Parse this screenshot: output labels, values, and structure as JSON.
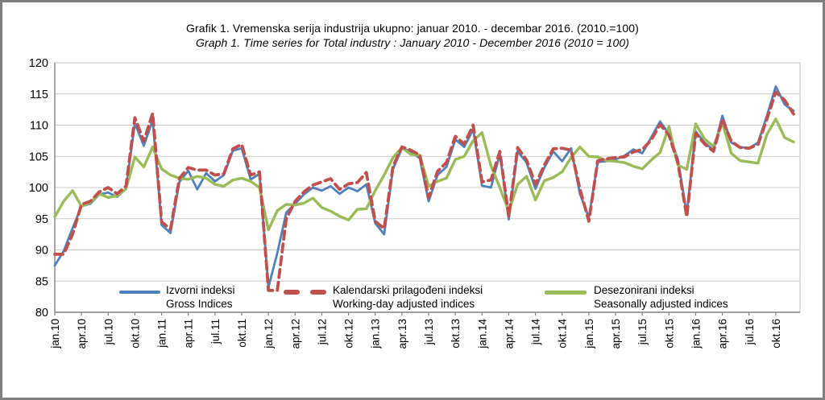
{
  "window": {
    "background": "#ffffff",
    "border_color": "#7f7f7f"
  },
  "title": {
    "line1": "Grafik 1. Vremenska serija industrija ukupno: januar 2010. - decembar 2016. (2010.=100)",
    "line2": "Graph 1. Time series for Total industry : January 2010 - December 2016 (2010 = 100)"
  },
  "legend": [
    {
      "label_hr": "Izvorni indeksi",
      "label_en": "Gross Indices",
      "style": "solid"
    },
    {
      "label_hr": "Kalendarski prilagođeni indeksi",
      "label_en": "Working-day adjusted indices",
      "style": "dashed"
    },
    {
      "label_hr": "Desezonirani indeksi",
      "label_en": "Seasonally adjusted indices",
      "style": "solid"
    }
  ],
  "chart_data": {
    "type": "line",
    "title": "Grafik 1. Vremenska serija industrija ukupno: januar 2010. - decembar 2016. (2010.=100)",
    "title_en": "Graph 1. Time series for Total industry : January 2010 - December 2016 (2010 = 100)",
    "x_unit": "month",
    "x_range": "jan.10 - dec.16 (84 monthly points)",
    "x_tick_labels": [
      "jan.10",
      "apr.10",
      "jul.10",
      "okt.10",
      "jan.11",
      "apr.11",
      "jul.11",
      "okt.11",
      "jan.12",
      "apr.12",
      "jul.12",
      "okt.12",
      "jan.13",
      "apr.13",
      "jul.13",
      "okt.13",
      "jan.14",
      "apr.14",
      "jul.14",
      "okt.14",
      "jan.15",
      "apr.15",
      "jul.15",
      "okt.15",
      "jan.16",
      "apr.16",
      "jul.16",
      "okt.16"
    ],
    "ylim": [
      80,
      120
    ],
    "y_ticks": [
      80,
      85,
      90,
      95,
      100,
      105,
      110,
      115,
      120
    ],
    "grid": "horizontal",
    "legend_position": "bottom-inside",
    "series": [
      {
        "name": "Izvorni indeksi (Gross Indices)",
        "color": "#4F81BD",
        "style": "solid",
        "width": 2.8,
        "values": [
          87.5,
          89.8,
          93.5,
          97.0,
          97.4,
          98.9,
          99.2,
          98.5,
          99.8,
          110.3,
          106.7,
          110.8,
          94.0,
          92.7,
          100.9,
          102.7,
          99.7,
          102.3,
          101.0,
          102.0,
          105.9,
          106.3,
          101.3,
          102.2,
          84.0,
          89.5,
          96.0,
          97.4,
          98.9,
          100.0,
          99.5,
          100.2,
          99.0,
          100.0,
          99.4,
          100.5,
          94.3,
          92.5,
          103.0,
          106.3,
          105.8,
          104.7,
          97.8,
          102.0,
          103.3,
          107.7,
          106.5,
          109.3,
          100.3,
          100.0,
          105.4,
          94.9,
          105.8,
          104.0,
          99.8,
          103.2,
          105.8,
          104.2,
          106.3,
          99.0,
          95.2,
          104.1,
          104.2,
          104.5,
          105.1,
          106.1,
          105.5,
          108.0,
          110.6,
          108.6,
          104.5,
          95.8,
          109.0,
          107.2,
          106.0,
          111.5,
          107.2,
          106.5,
          106.3,
          107.2,
          111.5,
          116.2,
          113.3,
          112.3
        ]
      },
      {
        "name": "Kalendarski prilagođeni indeksi (Working-day adjusted indices)",
        "color": "#C0504D",
        "style": "dashed",
        "width": 3.8,
        "values": [
          89.3,
          89.3,
          92.5,
          97.3,
          97.8,
          99.3,
          100.0,
          99.0,
          100.2,
          111.2,
          107.4,
          111.9,
          94.5,
          93.3,
          101.5,
          103.2,
          102.8,
          102.8,
          102.0,
          102.2,
          106.2,
          106.9,
          102.0,
          102.5,
          83.5,
          83.5,
          95.0,
          97.8,
          99.3,
          100.4,
          100.9,
          101.4,
          99.7,
          100.6,
          100.8,
          102.4,
          94.6,
          93.4,
          103.4,
          106.5,
          106.0,
          105.2,
          98.4,
          102.6,
          104.0,
          108.2,
          107.0,
          110.0,
          100.9,
          101.2,
          105.8,
          95.3,
          106.4,
          104.4,
          100.5,
          103.6,
          106.2,
          106.3,
          106.0,
          99.8,
          94.6,
          104.3,
          104.6,
          104.8,
          104.9,
          105.7,
          106.1,
          107.6,
          110.1,
          108.4,
          104.0,
          95.3,
          108.7,
          107.0,
          105.8,
          110.9,
          107.4,
          106.4,
          106.3,
          106.9,
          111.0,
          115.3,
          114.0,
          111.8
        ]
      },
      {
        "name": "Desezonirani indeksi (Seasonally adjusted indices)",
        "color": "#9BBB59",
        "style": "solid",
        "width": 3.4,
        "values": [
          95.3,
          97.8,
          99.5,
          97.0,
          97.6,
          99.0,
          98.4,
          98.7,
          99.8,
          104.9,
          103.3,
          106.5,
          103.0,
          102.0,
          101.5,
          101.3,
          101.8,
          101.5,
          100.5,
          100.2,
          101.2,
          101.5,
          101.0,
          100.0,
          93.2,
          96.3,
          97.3,
          97.2,
          97.5,
          98.3,
          96.8,
          96.2,
          95.4,
          94.8,
          96.5,
          96.6,
          99.5,
          102.0,
          104.8,
          106.4,
          105.3,
          105.2,
          100.2,
          101.0,
          101.5,
          104.5,
          105.0,
          107.5,
          108.8,
          103.5,
          100.0,
          96.2,
          100.5,
          101.8,
          98.0,
          101.1,
          101.6,
          102.5,
          104.8,
          106.5,
          105.0,
          104.9,
          104.3,
          104.2,
          104.0,
          103.4,
          103.0,
          104.4,
          105.6,
          109.8,
          103.6,
          102.9,
          110.2,
          107.8,
          106.6,
          110.4,
          105.5,
          104.3,
          104.1,
          103.9,
          108.5,
          111.0,
          108.0,
          107.3
        ]
      }
    ]
  }
}
